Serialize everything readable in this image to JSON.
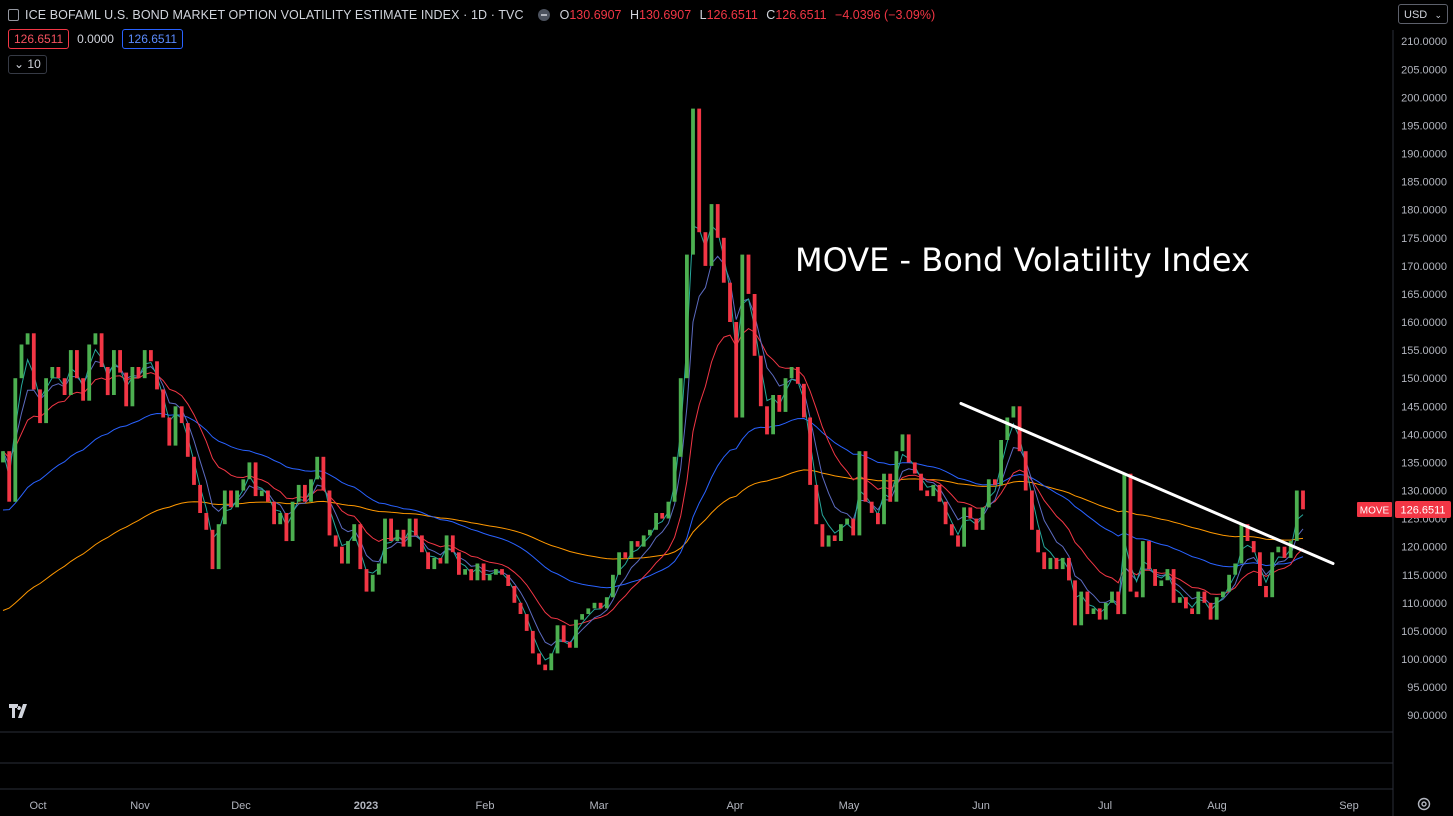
{
  "header": {
    "title": "ICE BOFAML U.S. BOND MARKET OPTION VOLATILITY ESTIMATE INDEX · 1D · TVC",
    "ohlc": {
      "o_label": "O",
      "o": "130.6907",
      "h_label": "H",
      "h": "130.6907",
      "l_label": "L",
      "l": "126.6511",
      "c_label": "C",
      "c": "126.6511",
      "change": "−4.0396 (−3.09%)"
    }
  },
  "indicators": {
    "value_red": "126.6511",
    "value_mid": "0.0000",
    "value_blue": "126.6511",
    "length_label": "10"
  },
  "currency": "USD",
  "icons": [
    "symbol-icon",
    "settings-icon",
    "chevron-down-icon",
    "tradingview-logo"
  ],
  "colors": {
    "up": "#4caf50",
    "down": "#f23645",
    "ma_fast": "#26a69a",
    "ma_blue_short": "#5c6bc0",
    "ma_red": "#f23645",
    "ma_blue_long": "#2962ff",
    "ma_orange": "#ff9800",
    "trendline": "#ffffff"
  },
  "chart_data": {
    "type": "candlestick",
    "title": "MOVE - Bond Volatility Index",
    "symbol_tag": "MOVE",
    "last_price": "126.6511",
    "ylim": [
      87,
      212
    ],
    "y_ticks": [
      "210.0000",
      "205.0000",
      "200.0000",
      "195.0000",
      "190.0000",
      "185.0000",
      "180.0000",
      "175.0000",
      "170.0000",
      "165.0000",
      "160.0000",
      "155.0000",
      "150.0000",
      "145.0000",
      "140.0000",
      "135.0000",
      "130.0000",
      "125.0000",
      "120.0000",
      "115.0000",
      "110.0000",
      "105.0000",
      "100.0000",
      "95.0000",
      "90.0000"
    ],
    "x_ticks": [
      "Oct",
      "Nov",
      "Dec",
      "2023",
      "Feb",
      "Mar",
      "Apr",
      "May",
      "Jun",
      "Jul",
      "Aug",
      "Sep"
    ],
    "close": [
      137,
      128,
      150,
      156,
      158,
      148,
      142,
      150,
      152,
      150,
      147,
      155,
      150,
      146,
      156,
      158,
      152,
      147,
      155,
      151,
      145,
      152,
      150,
      155,
      153,
      148,
      143,
      138,
      145,
      142,
      136,
      131,
      126,
      123,
      116,
      124,
      130,
      127,
      130,
      132,
      135,
      129,
      130,
      128,
      124,
      126,
      121,
      128,
      131,
      128,
      132,
      136,
      130,
      122,
      120,
      117,
      121,
      124,
      116,
      112,
      115,
      117,
      125,
      121,
      123,
      120,
      125,
      122,
      119,
      116,
      118,
      117,
      122,
      119,
      115,
      116,
      114,
      117,
      114,
      115,
      116,
      115,
      113,
      110,
      108,
      105,
      101,
      99,
      98,
      101,
      106,
      103,
      102,
      107,
      108,
      109,
      110,
      109,
      111,
      115,
      119,
      118,
      121,
      120,
      122,
      123,
      126,
      125,
      128,
      136,
      150,
      172,
      198,
      176,
      170,
      181,
      175,
      167,
      160,
      143,
      172,
      165,
      154,
      145,
      140,
      147,
      144,
      150,
      152,
      149,
      143,
      131,
      124,
      120,
      122,
      121,
      124,
      125,
      122,
      137,
      128,
      126,
      124,
      133,
      128,
      137,
      140,
      135,
      133,
      130,
      129,
      131,
      128,
      124,
      122,
      120,
      127,
      125,
      123,
      127,
      132,
      131,
      139,
      143,
      145,
      137,
      130,
      123,
      119,
      116,
      118,
      116,
      118,
      114,
      106,
      112,
      108,
      109,
      107,
      110,
      112,
      108,
      133,
      112,
      111,
      121,
      116,
      113,
      114,
      116,
      110,
      111,
      109,
      108,
      112,
      110,
      107,
      111,
      112,
      115,
      117,
      124,
      121,
      119,
      113,
      111,
      119,
      120,
      118,
      121,
      130,
      126.65
    ]
  }
}
